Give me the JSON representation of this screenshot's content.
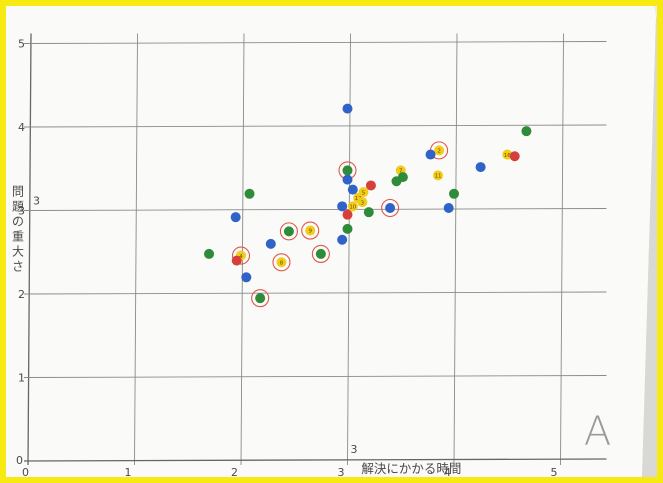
{
  "chart_data": {
    "type": "scatter",
    "title": "",
    "xlabel": "解決にかかる時間",
    "ylabel": "問題の重大さ",
    "xlim": [
      0,
      5.3
    ],
    "ylim": [
      0,
      5
    ],
    "x_ticks": [
      "0",
      "1",
      "2",
      "3",
      "4",
      "5"
    ],
    "y_ticks": [
      "0",
      "1",
      "2",
      "3",
      "4",
      "5"
    ],
    "grid": true,
    "corner_mark": "A",
    "extra_axis_marks": {
      "x_three_below": "3",
      "y_three_beside": "3"
    },
    "colors": {
      "green": "#2e8b3a",
      "blue": "#2f63c7",
      "red": "#d7403a",
      "yellow": "#f2cc1a",
      "circle": "#e0574a"
    },
    "points": [
      {
        "x": 3.0,
        "y": 4.22,
        "color": "blue"
      },
      {
        "x": 4.68,
        "y": 3.95,
        "color": "green"
      },
      {
        "x": 3.86,
        "y": 3.72,
        "color": "yellow",
        "ring": true,
        "label": "2"
      },
      {
        "x": 3.78,
        "y": 3.67,
        "color": "blue"
      },
      {
        "x": 4.5,
        "y": 3.67,
        "color": "yellow",
        "label": "16"
      },
      {
        "x": 4.57,
        "y": 3.65,
        "color": "red"
      },
      {
        "x": 4.25,
        "y": 3.52,
        "color": "blue"
      },
      {
        "x": 3.0,
        "y": 3.48,
        "color": "green",
        "ring": true
      },
      {
        "x": 3.5,
        "y": 3.48,
        "color": "yellow",
        "label": "7"
      },
      {
        "x": 3.85,
        "y": 3.42,
        "color": "yellow",
        "label": "11"
      },
      {
        "x": 3.52,
        "y": 3.4,
        "color": "green"
      },
      {
        "x": 3.0,
        "y": 3.37,
        "color": "blue"
      },
      {
        "x": 3.46,
        "y": 3.35,
        "color": "green"
      },
      {
        "x": 3.22,
        "y": 3.3,
        "color": "red"
      },
      {
        "x": 3.05,
        "y": 3.25,
        "color": "blue"
      },
      {
        "x": 3.15,
        "y": 3.22,
        "color": "yellow",
        "label": "5"
      },
      {
        "x": 3.1,
        "y": 3.15,
        "color": "yellow",
        "label": "12"
      },
      {
        "x": 4.0,
        "y": 3.2,
        "color": "green"
      },
      {
        "x": 2.08,
        "y": 3.2,
        "color": "green"
      },
      {
        "x": 3.14,
        "y": 3.1,
        "color": "yellow",
        "label": "3"
      },
      {
        "x": 3.05,
        "y": 3.05,
        "color": "yellow",
        "label": "10"
      },
      {
        "x": 2.95,
        "y": 3.05,
        "color": "blue"
      },
      {
        "x": 3.4,
        "y": 3.03,
        "color": "blue",
        "ring": true
      },
      {
        "x": 3.95,
        "y": 3.03,
        "color": "blue"
      },
      {
        "x": 3.2,
        "y": 2.98,
        "color": "green"
      },
      {
        "x": 3.0,
        "y": 2.95,
        "color": "red"
      },
      {
        "x": 1.95,
        "y": 2.92,
        "color": "blue"
      },
      {
        "x": 3.0,
        "y": 2.78,
        "color": "green"
      },
      {
        "x": 2.65,
        "y": 2.76,
        "color": "yellow",
        "ring": true,
        "label": "9"
      },
      {
        "x": 2.45,
        "y": 2.75,
        "color": "green",
        "ring": true
      },
      {
        "x": 2.95,
        "y": 2.65,
        "color": "blue"
      },
      {
        "x": 2.28,
        "y": 2.6,
        "color": "blue"
      },
      {
        "x": 2.75,
        "y": 2.48,
        "color": "green",
        "ring": true
      },
      {
        "x": 1.7,
        "y": 2.48,
        "color": "green"
      },
      {
        "x": 2.0,
        "y": 2.46,
        "color": "yellow",
        "ring": true,
        "label": "4"
      },
      {
        "x": 1.96,
        "y": 2.4,
        "color": "red"
      },
      {
        "x": 2.38,
        "y": 2.38,
        "color": "yellow",
        "ring": true,
        "label": "8"
      },
      {
        "x": 2.05,
        "y": 2.2,
        "color": "blue"
      },
      {
        "x": 2.18,
        "y": 1.95,
        "color": "green",
        "ring": true
      }
    ]
  }
}
